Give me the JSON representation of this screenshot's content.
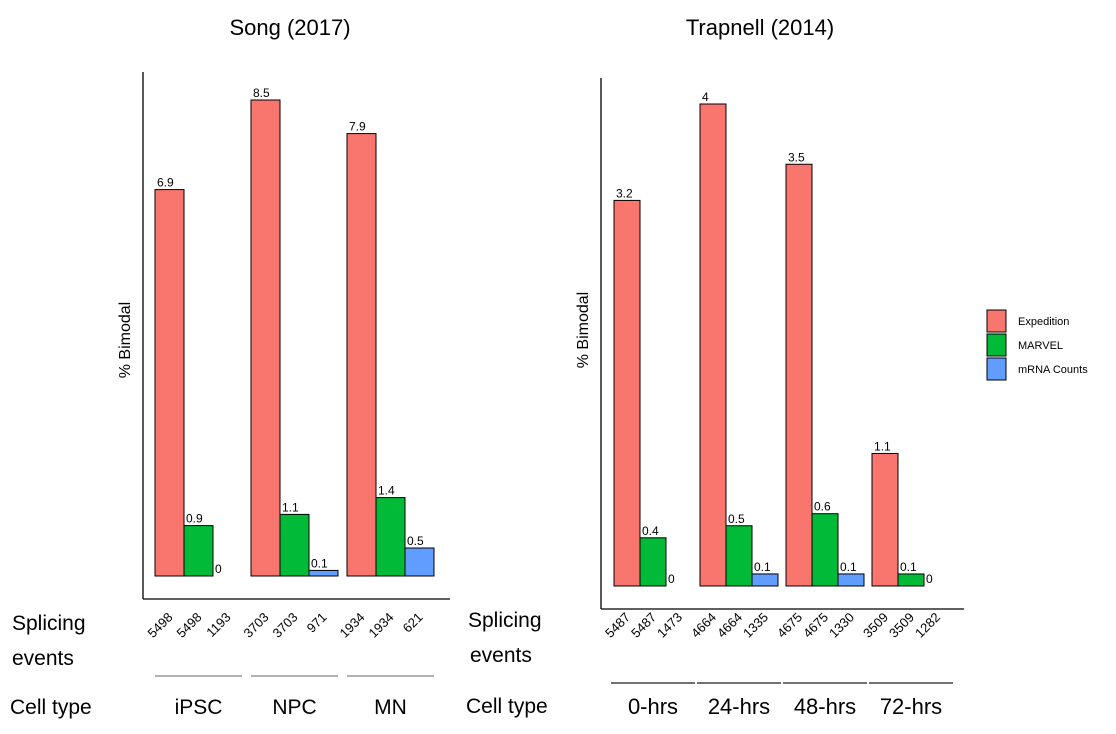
{
  "colors": {
    "Expedition": "#F8766D",
    "MARVEL": "#00BA38",
    "mRNA Counts": "#619CFF"
  },
  "row_labels": {
    "splicing": [
      "Splicing",
      "events"
    ],
    "celltype": "Cell type"
  },
  "legend": {
    "items": [
      "Expedition",
      "MARVEL",
      "mRNA Counts"
    ]
  },
  "chart_data": [
    {
      "type": "bar",
      "title": "Song (2017)",
      "ylabel": "% Bimodal",
      "categories": [
        "iPSC",
        "NPC",
        "MN"
      ],
      "series": [
        {
          "name": "Expedition",
          "values": [
            6.9,
            8.5,
            7.9
          ],
          "labels": [
            "6.9",
            "8.5",
            "7.9"
          ]
        },
        {
          "name": "MARVEL",
          "values": [
            0.9,
            1.1,
            1.4
          ],
          "labels": [
            "0.9",
            "1.1",
            "1.4"
          ]
        },
        {
          "name": "mRNA Counts",
          "values": [
            0,
            0.1,
            0.5
          ],
          "labels": [
            "0",
            "0.1",
            "0.5"
          ]
        }
      ],
      "splicing_events": [
        [
          "5498",
          "5498",
          "1193"
        ],
        [
          "3703",
          "3703",
          "971"
        ],
        [
          "1934",
          "1934",
          "621"
        ]
      ],
      "ylim": [
        0,
        8.5
      ]
    },
    {
      "type": "bar",
      "title": "Trapnell (2014)",
      "ylabel": "% Bimodal",
      "categories": [
        "0-hrs",
        "24-hrs",
        "48-hrs",
        "72-hrs"
      ],
      "series": [
        {
          "name": "Expedition",
          "values": [
            3.2,
            4,
            3.5,
            1.1
          ],
          "labels": [
            "3.2",
            "4",
            "3.5",
            "1.1"
          ]
        },
        {
          "name": "MARVEL",
          "values": [
            0.4,
            0.5,
            0.6,
            0.1
          ],
          "labels": [
            "0.4",
            "0.5",
            "0.6",
            "0.1"
          ]
        },
        {
          "name": "mRNA Counts",
          "values": [
            0,
            0.1,
            0.1,
            0
          ],
          "labels": [
            "0",
            "0.1",
            "0.1",
            "0"
          ]
        }
      ],
      "splicing_events": [
        [
          "5487",
          "5487",
          "1473"
        ],
        [
          "4664",
          "4664",
          "1335"
        ],
        [
          "4675",
          "4675",
          "1330"
        ],
        [
          "3509",
          "3509",
          "1282"
        ]
      ],
      "ylim": [
        0,
        4
      ]
    }
  ]
}
